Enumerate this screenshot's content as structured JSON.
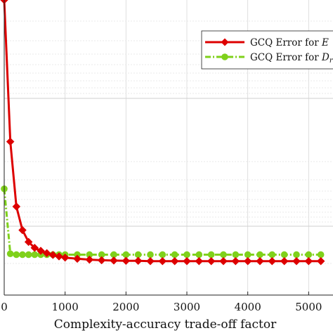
{
  "chart_data": {
    "type": "line",
    "xlabel": "Complexity-accuracy trade-off factor",
    "ylabel": "",
    "x_ticks": [
      "0",
      "1000",
      "2000",
      "3000",
      "4000",
      "5000"
    ],
    "xlim": [
      0,
      5400
    ],
    "ylim": [
      0,
      10
    ],
    "grid": true,
    "legend_position": "top-right",
    "series": [
      {
        "name": "GCQ Error for E",
        "color": "#dd0000",
        "marker": "diamond",
        "linestyle": "solid",
        "x": [
          0,
          100,
          200,
          300,
          400,
          500,
          600,
          700,
          800,
          900,
          1000,
          1200,
          1400,
          1600,
          1800,
          2000,
          2200,
          2400,
          2600,
          2800,
          3000,
          3200,
          3400,
          3600,
          3800,
          4000,
          4200,
          4400,
          4600,
          4800,
          5000,
          5200
        ],
        "y": [
          10,
          5.2,
          3.0,
          2.2,
          1.8,
          1.6,
          1.5,
          1.42,
          1.36,
          1.31,
          1.27,
          1.23,
          1.2,
          1.18,
          1.17,
          1.16,
          1.16,
          1.15,
          1.15,
          1.15,
          1.15,
          1.15,
          1.15,
          1.15,
          1.15,
          1.15,
          1.15,
          1.15,
          1.15,
          1.15,
          1.15,
          1.15
        ]
      },
      {
        "name": "GCQ Error for D",
        "color": "#7fd11b",
        "marker": "circle",
        "linestyle": "dash-dot",
        "x": [
          0,
          100,
          200,
          300,
          400,
          500,
          600,
          700,
          800,
          900,
          1000,
          1200,
          1400,
          1600,
          1800,
          2000,
          2200,
          2400,
          2600,
          2800,
          3000,
          3200,
          3400,
          3600,
          3800,
          4000,
          4200,
          4400,
          4600,
          4800,
          5000,
          5200
        ],
        "y": [
          3.6,
          1.4,
          1.37,
          1.37,
          1.37,
          1.37,
          1.37,
          1.37,
          1.37,
          1.37,
          1.37,
          1.37,
          1.37,
          1.37,
          1.37,
          1.37,
          1.37,
          1.37,
          1.37,
          1.37,
          1.37,
          1.37,
          1.37,
          1.37,
          1.37,
          1.37,
          1.37,
          1.37,
          1.37,
          1.37,
          1.37,
          1.37
        ]
      }
    ]
  },
  "legend": {
    "items": [
      {
        "prefix": "GCQ Error for ",
        "symbol": "E",
        "subscript": ""
      },
      {
        "prefix": "GCQ Error for ",
        "symbol": "D",
        "subscript": "r"
      }
    ]
  }
}
